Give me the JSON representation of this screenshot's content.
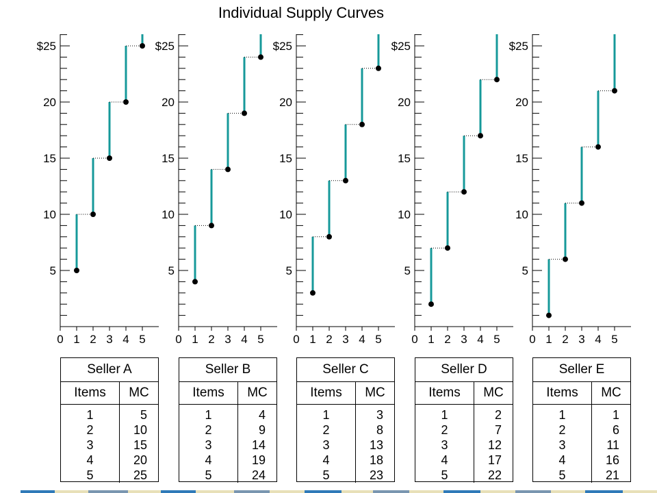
{
  "title": "Individual Supply Curves",
  "chart_data": [
    {
      "type": "line",
      "seller": "A",
      "x": [
        1,
        2,
        3,
        4,
        5
      ],
      "values": [
        5,
        10,
        15,
        20,
        25
      ],
      "ylim": [
        0,
        26
      ],
      "xlim": [
        0,
        5
      ],
      "y_ticks": [
        "5",
        "10",
        "15",
        "20",
        "$25"
      ],
      "x_ticks": [
        "0",
        "1",
        "2",
        "3",
        "4",
        "5"
      ],
      "color": "#16999a"
    },
    {
      "type": "line",
      "seller": "B",
      "x": [
        1,
        2,
        3,
        4,
        5
      ],
      "values": [
        4,
        9,
        14,
        19,
        24
      ],
      "ylim": [
        0,
        26
      ],
      "xlim": [
        0,
        5
      ],
      "y_ticks": [
        "5",
        "10",
        "15",
        "20",
        "$25"
      ],
      "x_ticks": [
        "0",
        "1",
        "2",
        "3",
        "4",
        "5"
      ],
      "color": "#16999a"
    },
    {
      "type": "line",
      "seller": "C",
      "x": [
        1,
        2,
        3,
        4,
        5
      ],
      "values": [
        3,
        8,
        13,
        18,
        23
      ],
      "ylim": [
        0,
        26
      ],
      "xlim": [
        0,
        5
      ],
      "y_ticks": [
        "5",
        "10",
        "15",
        "20",
        "$25"
      ],
      "x_ticks": [
        "0",
        "1",
        "2",
        "3",
        "4",
        "5"
      ],
      "color": "#16999a"
    },
    {
      "type": "line",
      "seller": "D",
      "x": [
        1,
        2,
        3,
        4,
        5
      ],
      "values": [
        2,
        7,
        12,
        17,
        22
      ],
      "ylim": [
        0,
        26
      ],
      "xlim": [
        0,
        5
      ],
      "y_ticks": [
        "5",
        "10",
        "15",
        "20",
        "$25"
      ],
      "x_ticks": [
        "0",
        "1",
        "2",
        "3",
        "4",
        "5"
      ],
      "color": "#16999a"
    },
    {
      "type": "line",
      "seller": "E",
      "x": [
        1,
        2,
        3,
        4,
        5
      ],
      "values": [
        1,
        6,
        11,
        16,
        21
      ],
      "ylim": [
        0,
        26
      ],
      "xlim": [
        0,
        5
      ],
      "y_ticks": [
        "5",
        "10",
        "15",
        "20",
        "$25"
      ],
      "x_ticks": [
        "0",
        "1",
        "2",
        "3",
        "4",
        "5"
      ],
      "color": "#16999a"
    }
  ],
  "tables": [
    {
      "name": "Seller A",
      "col_items": "Items",
      "col_mc": "MC",
      "items": [
        "1",
        "2",
        "3",
        "4",
        "5"
      ],
      "mc": [
        "5",
        "10",
        "15",
        "20",
        "25"
      ]
    },
    {
      "name": "Seller B",
      "col_items": "Items",
      "col_mc": "MC",
      "items": [
        "1",
        "2",
        "3",
        "4",
        "5"
      ],
      "mc": [
        "4",
        "9",
        "14",
        "19",
        "24"
      ]
    },
    {
      "name": "Seller C",
      "col_items": "Items",
      "col_mc": "MC",
      "items": [
        "1",
        "2",
        "3",
        "4",
        "5"
      ],
      "mc": [
        "3",
        "8",
        "13",
        "18",
        "23"
      ]
    },
    {
      "name": "Seller D",
      "col_items": "Items",
      "col_mc": "MC",
      "items": [
        "1",
        "2",
        "3",
        "4",
        "5"
      ],
      "mc": [
        "2",
        "7",
        "12",
        "17",
        "22"
      ]
    },
    {
      "name": "Seller E",
      "col_items": "Items",
      "col_mc": "MC",
      "items": [
        "1",
        "2",
        "3",
        "4",
        "5"
      ],
      "mc": [
        "1",
        "6",
        "11",
        "16",
        "21"
      ]
    }
  ],
  "bottom_bar_colors": [
    "#2f7ab8",
    "#e8e0b8",
    "#7a96b0",
    "#e8e0b8",
    "#2f7ab8",
    "#e8e0b8",
    "#7a96b0",
    "#e8e0b8",
    "#2f7ab8",
    "#e8e0b8",
    "#7a96b0",
    "#e8e0b8",
    "#2f7ab8",
    "#e8e0b8",
    "#7a96b0",
    "#e8e0b8",
    "#2f7ab8",
    "#e8e0b8"
  ]
}
